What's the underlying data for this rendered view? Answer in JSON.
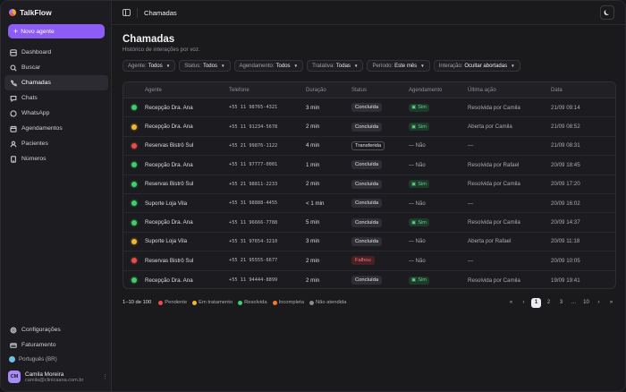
{
  "app": {
    "name": "TalkFlow"
  },
  "sidebar": {
    "new_agent": "Novo agente",
    "items": [
      {
        "label": "Dashboard",
        "icon": "dashboard-icon"
      },
      {
        "label": "Buscar",
        "icon": "search-icon"
      },
      {
        "label": "Chamadas",
        "icon": "phone-icon",
        "active": true
      },
      {
        "label": "Chats",
        "icon": "chat-icon"
      },
      {
        "label": "WhatsApp",
        "icon": "whatsapp-icon"
      },
      {
        "label": "Agendamentos",
        "icon": "calendar-icon"
      },
      {
        "label": "Pacientes",
        "icon": "patients-icon"
      },
      {
        "label": "Números",
        "icon": "numbers-icon"
      }
    ],
    "bottom_items": [
      {
        "label": "Configurações",
        "icon": "gear-icon"
      },
      {
        "label": "Faturamento",
        "icon": "billing-icon"
      }
    ],
    "language": "Português (BR)",
    "user": {
      "initials": "CM",
      "name": "Camila Moreira",
      "email": "camila@clinicaana.com.br"
    }
  },
  "topbar": {
    "title": "Chamadas"
  },
  "page": {
    "title": "Chamadas",
    "subtitle": "Histórico de interações por voz."
  },
  "filters": [
    {
      "label": "Agente:",
      "value": "Todos"
    },
    {
      "label": "Status:",
      "value": "Todos"
    },
    {
      "label": "Agendamento:",
      "value": "Todos"
    },
    {
      "label": "Tratativa:",
      "value": "Todas"
    },
    {
      "label": "Período:",
      "value": "Este mês"
    },
    {
      "label": "Interação:",
      "value": "Ocultar abortadas"
    }
  ],
  "table": {
    "columns": [
      "Agente",
      "Telefone",
      "Duração",
      "Status",
      "Agendamento",
      "Última ação",
      "Data"
    ],
    "rows": [
      {
        "dot": "#3ecf6e",
        "agent": "Recepção Dra. Ana",
        "phone": "+55 11 98765-4321",
        "duration": "3 min",
        "status": "Concluída",
        "status_kind": "done",
        "sched": "Sim",
        "last": "Resolvida por Camila",
        "date": "21/09 09:14"
      },
      {
        "dot": "#f2b632",
        "agent": "Recepção Dra. Ana",
        "phone": "+55 11 91234-5678",
        "duration": "2 min",
        "status": "Concluída",
        "status_kind": "done",
        "sched": "Sim",
        "last": "Aberta por Camila",
        "date": "21/09 08:52"
      },
      {
        "dot": "#ef4c4c",
        "agent": "Reservas Bistrô Sul",
        "phone": "+55 21 99876-1122",
        "duration": "4 min",
        "status": "Transferida",
        "status_kind": "out",
        "sched": "— Não",
        "last": "—",
        "date": "21/09 08:31"
      },
      {
        "dot": "#3ecf6e",
        "agent": "Recepção Dra. Ana",
        "phone": "+55 11 97777-0001",
        "duration": "1 min",
        "status": "Concluída",
        "status_kind": "done",
        "sched": "— Não",
        "last": "Resolvida por Rafael",
        "date": "20/09 18:45"
      },
      {
        "dot": "#3ecf6e",
        "agent": "Reservas Bistrô Sul",
        "phone": "+55 21 98811-2233",
        "duration": "2 min",
        "status": "Concluída",
        "status_kind": "done",
        "sched": "Sim",
        "last": "Resolvida por Camila",
        "date": "20/09 17:20"
      },
      {
        "dot": "#3ecf6e",
        "agent": "Suporte Loja Vila",
        "phone": "+55 31 98888-4455",
        "duration": "< 1 min",
        "status": "Concluída",
        "status_kind": "done",
        "sched": "— Não",
        "last": "—",
        "date": "20/09 16:02"
      },
      {
        "dot": "#3ecf6e",
        "agent": "Recepção Dra. Ana",
        "phone": "+55 11 96666-7788",
        "duration": "5 min",
        "status": "Concluída",
        "status_kind": "done",
        "sched": "Sim",
        "last": "Resolvida por Camila",
        "date": "20/09 14:37"
      },
      {
        "dot": "#f2b632",
        "agent": "Suporte Loja Vila",
        "phone": "+55 31 97654-3210",
        "duration": "3 min",
        "status": "Concluída",
        "status_kind": "done",
        "sched": "— Não",
        "last": "Aberta por Rafael",
        "date": "20/09 11:18"
      },
      {
        "dot": "#ef4c4c",
        "agent": "Reservas Bistrô Sul",
        "phone": "+55 21 95555-6677",
        "duration": "2 min",
        "status": "Falhou",
        "status_kind": "fail",
        "sched": "— Não",
        "last": "—",
        "date": "20/09 10:05"
      },
      {
        "dot": "#3ecf6e",
        "agent": "Recepção Dra. Ana",
        "phone": "+55 11 94444-8899",
        "duration": "2 min",
        "status": "Concluída",
        "status_kind": "done",
        "sched": "Sim",
        "last": "Resolvida por Camila",
        "date": "19/09 19:41"
      }
    ]
  },
  "footer": {
    "range": "1–10 de 100",
    "legend": [
      {
        "label": "Pendente",
        "color": "#ef4c4c"
      },
      {
        "label": "Em tratamento",
        "color": "#f2b632"
      },
      {
        "label": "Resolvida",
        "color": "#3ecf6e"
      },
      {
        "label": "Incompleta",
        "color": "#f07b2e"
      },
      {
        "label": "Não atendida",
        "color": "#8a8a92"
      }
    ],
    "pages": [
      "«",
      "‹",
      "1",
      "2",
      "3",
      "...",
      "10",
      "›",
      "»"
    ],
    "current_page": "1"
  },
  "colors": {
    "accent": "#8b5cf6",
    "success": "#3ecf6e",
    "warning": "#f2b632",
    "danger": "#ef4c4c"
  }
}
